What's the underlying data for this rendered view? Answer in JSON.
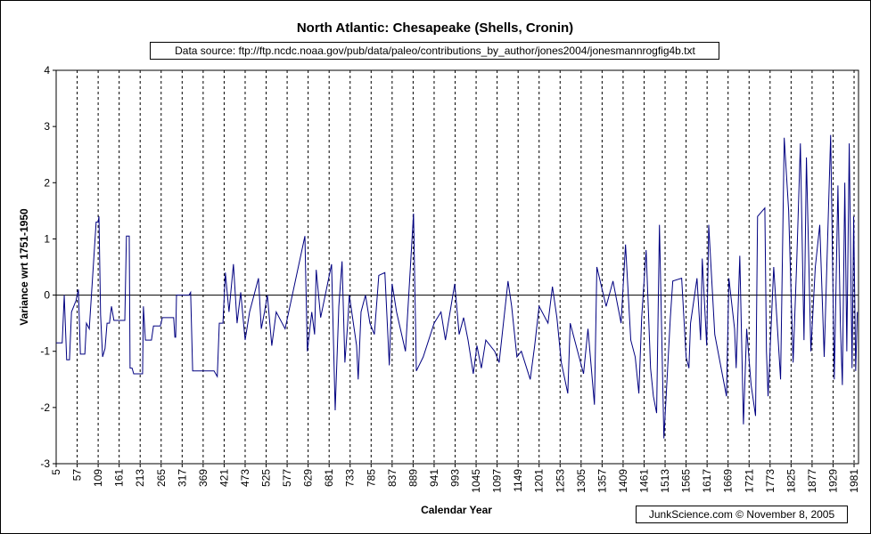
{
  "chart_data": {
    "type": "line",
    "title": "North Atlantic: Chesapeake (Shells, Cronin)",
    "subtitle": "Data source: ftp://ftp.ncdc.noaa.gov/pub/data/paleo/contributions_by_author/jones2004/jonesmannrogfig4b.txt",
    "x_label": "Calendar Year",
    "y_label": "Variance wrt 1751-1950",
    "annotation": "JunkScience.com ©  November 8, 2005",
    "xlim": [
      5,
      1992
    ],
    "xticks": [
      5,
      57,
      109,
      161,
      213,
      265,
      317,
      369,
      421,
      473,
      525,
      577,
      629,
      681,
      733,
      785,
      837,
      889,
      941,
      993,
      1045,
      1097,
      1149,
      1201,
      1253,
      1305,
      1357,
      1409,
      1461,
      1513,
      1565,
      1617,
      1669,
      1721,
      1773,
      1825,
      1877,
      1929,
      1981
    ],
    "ylim": [
      -3,
      4
    ],
    "yticks": [
      -3,
      -2,
      -1,
      0,
      1,
      2,
      3,
      4
    ],
    "grid": true,
    "x": [
      5,
      20,
      25,
      31,
      38,
      43,
      54,
      60,
      65,
      76,
      80,
      87,
      104,
      109,
      111,
      115,
      120,
      126,
      131,
      137,
      142,
      148,
      175,
      179,
      186,
      188,
      193,
      197,
      219,
      221,
      226,
      241,
      246,
      263,
      268,
      296,
      299,
      301,
      303,
      334,
      338,
      343,
      396,
      404,
      409,
      418,
      424,
      433,
      444,
      453,
      462,
      473,
      484,
      506,
      513,
      521,
      528,
      539,
      550,
      572,
      621,
      627,
      638,
      645,
      649,
      660,
      687,
      696,
      705,
      713,
      720,
      727,
      731,
      749,
      753,
      760,
      771,
      782,
      793,
      804,
      819,
      830,
      837,
      848,
      870,
      890,
      897,
      914,
      941,
      958,
      969,
      992,
      1003,
      1014,
      1025,
      1038,
      1047,
      1058,
      1069,
      1091,
      1102,
      1124,
      1133,
      1146,
      1157,
      1179,
      1190,
      1201,
      1223,
      1234,
      1245,
      1256,
      1272,
      1278,
      1300,
      1311,
      1322,
      1338,
      1344,
      1367,
      1384,
      1404,
      1415,
      1428,
      1439,
      1448,
      1455,
      1466,
      1477,
      1484,
      1492,
      1499,
      1510,
      1526,
      1532,
      1554,
      1565,
      1572,
      1576,
      1592,
      1601,
      1605,
      1616,
      1621,
      1636,
      1665,
      1671,
      1685,
      1689,
      1698,
      1707,
      1715,
      1726,
      1737,
      1742,
      1760,
      1764,
      1768,
      1782,
      1799,
      1808,
      1819,
      1830,
      1839,
      1848,
      1857,
      1863,
      1874,
      1885,
      1896,
      1907,
      1923,
      1932,
      1941,
      1947,
      1952,
      1958,
      1963,
      1969,
      1976,
      1980,
      1985,
      1989
    ],
    "series": [
      {
        "color": "#000080",
        "values": [
          -0.85,
          -0.85,
          0,
          -1.15,
          -1.15,
          -0.3,
          -0.1,
          0.1,
          -1.05,
          -1.05,
          -0.5,
          -0.6,
          1.3,
          1.3,
          1.4,
          -0.35,
          -1.1,
          -0.95,
          -0.5,
          -0.5,
          -0.2,
          -0.45,
          -0.45,
          1.05,
          1.05,
          -1.3,
          -1.3,
          -1.4,
          -1.4,
          -0.2,
          -0.8,
          -0.8,
          -0.55,
          -0.55,
          -0.4,
          -0.4,
          -0.75,
          -0.75,
          0,
          0,
          0.05,
          -1.35,
          -1.35,
          -1.45,
          -0.5,
          -0.5,
          0.4,
          -0.3,
          0.55,
          -0.5,
          0.05,
          -0.8,
          -0.3,
          0.3,
          -0.6,
          -0.3,
          0,
          -0.9,
          -0.3,
          -0.6,
          1.05,
          -1.0,
          -0.3,
          -0.7,
          0.45,
          -0.4,
          0.55,
          -2.05,
          -0.2,
          0.6,
          -1.2,
          -0.5,
          0,
          -0.9,
          -1.5,
          -0.3,
          0,
          -0.5,
          -0.7,
          0.35,
          0.4,
          -1.25,
          0.2,
          -0.3,
          -1.0,
          1.45,
          -1.35,
          -1.1,
          -0.5,
          -0.3,
          -0.8,
          0.2,
          -0.7,
          -0.4,
          -0.8,
          -1.4,
          -0.9,
          -1.3,
          -0.8,
          -1.0,
          -1.2,
          0.25,
          -0.2,
          -1.1,
          -1.0,
          -1.5,
          -0.9,
          -0.2,
          -0.5,
          0.15,
          -0.4,
          -1.2,
          -1.75,
          -0.5,
          -1.1,
          -1.4,
          -0.6,
          -1.95,
          0.5,
          -0.2,
          0.25,
          -0.5,
          0.9,
          -0.8,
          -1.1,
          -1.75,
          -0.4,
          0.8,
          -1.3,
          -1.8,
          -2.1,
          1.25,
          -2.55,
          -0.4,
          0.25,
          0.3,
          -1.1,
          -1.3,
          -0.5,
          0.3,
          -0.8,
          0.65,
          -0.9,
          1.25,
          -0.7,
          -1.8,
          0.3,
          -0.6,
          -1.3,
          0.7,
          -2.3,
          -0.6,
          -1.6,
          -2.15,
          1.4,
          1.55,
          -1.0,
          -1.8,
          0.5,
          -1.5,
          2.8,
          1.5,
          -1.2,
          0.6,
          2.7,
          -0.8,
          2.45,
          -1.0,
          0.5,
          1.25,
          -1.1,
          2.85,
          -1.5,
          1.95,
          -0.5,
          -1.6,
          2.0,
          -1.0,
          2.7,
          -1.3,
          1.4,
          -1.35,
          -0.3
        ]
      }
    ]
  }
}
